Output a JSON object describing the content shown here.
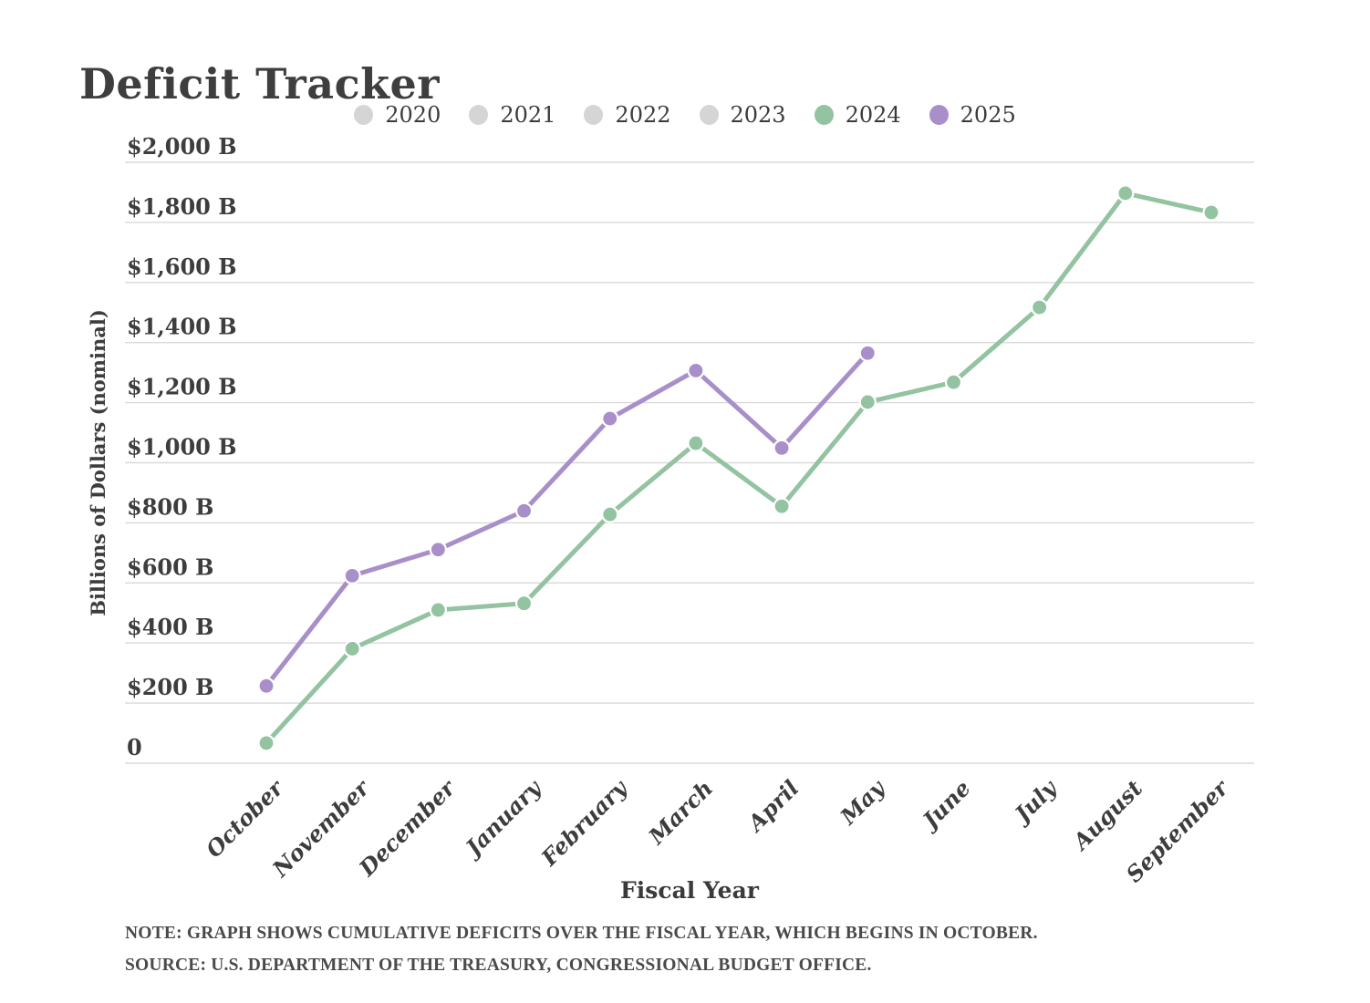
{
  "title": "Deficit Tracker",
  "legend": {
    "items": [
      {
        "label": "2020",
        "color": "#d5d5d5",
        "active": false
      },
      {
        "label": "2021",
        "color": "#d5d5d5",
        "active": false
      },
      {
        "label": "2022",
        "color": "#d5d5d5",
        "active": false
      },
      {
        "label": "2023",
        "color": "#d5d5d5",
        "active": false
      },
      {
        "label": "2024",
        "color": "#93c3a1",
        "active": true
      },
      {
        "label": "2025",
        "color": "#a98fca",
        "active": true
      }
    ]
  },
  "chart_data": {
    "type": "line",
    "title": "Deficit Tracker",
    "xlabel": "Fiscal Year",
    "ylabel": "Billions of Dollars (nominal)",
    "x": [
      "October",
      "November",
      "December",
      "January",
      "February",
      "March",
      "April",
      "May",
      "June",
      "July",
      "August",
      "September"
    ],
    "ylim": [
      0,
      2000
    ],
    "grid": true,
    "legend_position": "top",
    "y_ticks": [
      {
        "label": "$2,000 B",
        "value": 2000
      },
      {
        "label": "$1,800 B",
        "value": 1800
      },
      {
        "label": "$1,600 B",
        "value": 1600
      },
      {
        "label": "$1,400 B",
        "value": 1400
      },
      {
        "label": "$1,200 B",
        "value": 1200
      },
      {
        "label": "$1,000 B",
        "value": 1000
      },
      {
        "label": "$800 B",
        "value": 800
      },
      {
        "label": "$600 B",
        "value": 600
      },
      {
        "label": "$400 B",
        "value": 400
      },
      {
        "label": "$200 B",
        "value": 200
      },
      {
        "label": "0",
        "value": 0
      }
    ],
    "series": [
      {
        "name": "2024",
        "color": "#93c3a1",
        "values": [
          67,
          381,
          510,
          532,
          828,
          1065,
          855,
          1202,
          1268,
          1517,
          1897,
          1833
        ]
      },
      {
        "name": "2025",
        "color": "#a98fca",
        "values": [
          257,
          624,
          711,
          840,
          1147,
          1307,
          1049,
          1365
        ]
      }
    ],
    "inactive_series": [
      "2020",
      "2021",
      "2022",
      "2023"
    ]
  },
  "note": "NOTE: GRAPH SHOWS CUMULATIVE DEFICITS OVER THE FISCAL YEAR, WHICH BEGINS IN OCTOBER.",
  "source": "SOURCE: U.S. DEPARTMENT OF THE TREASURY, CONGRESSIONAL BUDGET OFFICE."
}
